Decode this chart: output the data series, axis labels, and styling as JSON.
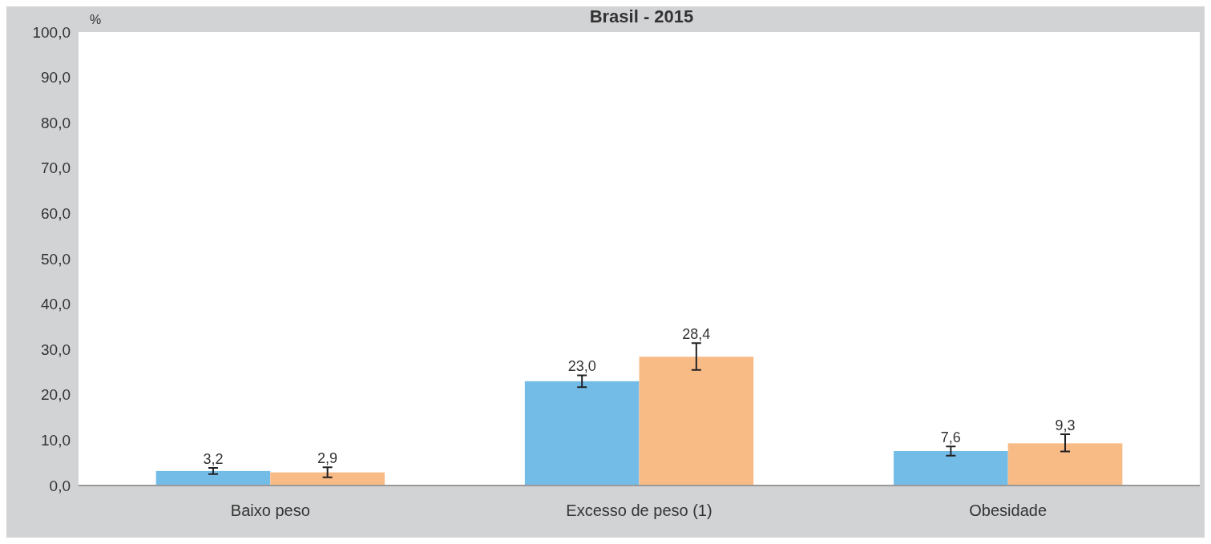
{
  "chart_data": {
    "type": "bar",
    "title": "Brasil - 2015",
    "ylabel": "%",
    "categories": [
      "Baixo peso",
      "Excesso de peso (1)",
      "Obesidade"
    ],
    "series": [
      {
        "color": "#74bce8",
        "values": [
          3.2,
          23.0,
          7.6
        ],
        "errors": [
          0.7,
          1.3,
          1.0
        ],
        "value_labels": [
          "3,2",
          "23,0",
          "7,6"
        ]
      },
      {
        "color": "#f9bb86",
        "values": [
          2.9,
          28.4,
          9.3
        ],
        "errors": [
          1.1,
          [
            25.5,
            31.4
          ],
          [
            7.5,
            11.3
          ]
        ],
        "value_labels": [
          "2,9",
          "28,4",
          "9,3"
        ]
      }
    ],
    "ylim": [
      0,
      100
    ],
    "yticks": [
      {
        "value": 0,
        "label": "0,0"
      },
      {
        "value": 10,
        "label": "10,0"
      },
      {
        "value": 20,
        "label": "20,0"
      },
      {
        "value": 30,
        "label": "30,0"
      },
      {
        "value": 40,
        "label": "40,0"
      },
      {
        "value": 50,
        "label": "50,0"
      },
      {
        "value": 60,
        "label": "60,0"
      },
      {
        "value": 70,
        "label": "70,0"
      },
      {
        "value": 80,
        "label": "80,0"
      },
      {
        "value": 90,
        "label": "90,0"
      },
      {
        "value": 100,
        "label": "100,0"
      }
    ],
    "grid": false
  }
}
